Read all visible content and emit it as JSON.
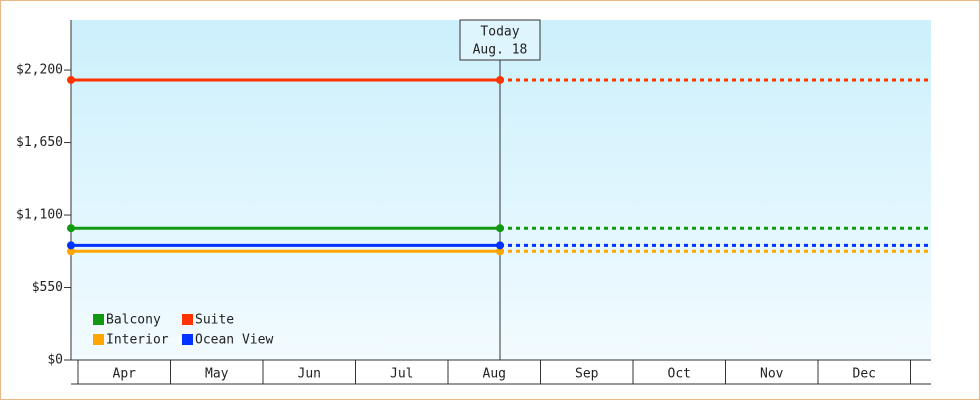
{
  "chart_data": {
    "type": "line",
    "categories": [
      "Apr",
      "May",
      "Jun",
      "Jul",
      "Aug",
      "Sep",
      "Oct",
      "Nov",
      "Dec"
    ],
    "series": [
      {
        "name": "Balcony",
        "color": "#119911",
        "value": 1000
      },
      {
        "name": "Suite",
        "color": "#ff3300",
        "value": 2125
      },
      {
        "name": "Interior",
        "color": "#ffa500",
        "value": 825
      },
      {
        "name": "Ocean View",
        "color": "#0033ff",
        "value": 870
      }
    ],
    "annotation": [
      "Today",
      "Aug. 18"
    ],
    "ylim": [
      0,
      2580
    ],
    "yticks": [
      {
        "value": 0,
        "label": "$0"
      },
      {
        "value": 550,
        "label": "$550"
      },
      {
        "value": 1100,
        "label": "$1,100"
      },
      {
        "value": 1650,
        "label": "$1,650"
      },
      {
        "value": 2200,
        "label": "$2,200"
      }
    ]
  }
}
